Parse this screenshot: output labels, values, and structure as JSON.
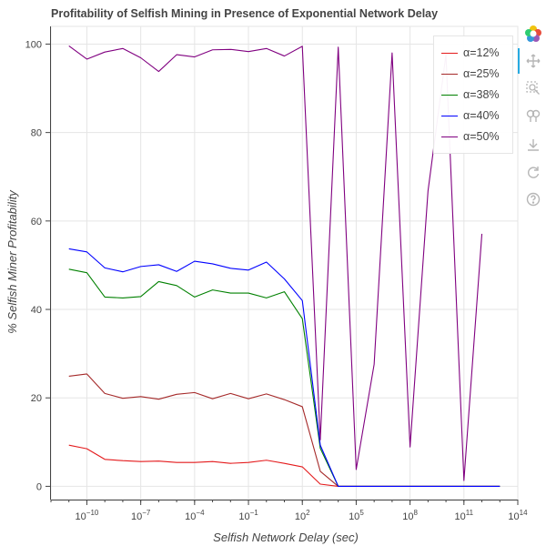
{
  "chart_data": {
    "type": "line",
    "title": "Profitability of Selfish Mining in Presence of Exponential Network Delay",
    "xlabel": "Selfish Network Delay (sec)",
    "ylabel": "% Selfish Miner Profitability",
    "x_scale": "log",
    "xlim": [
      1e-12,
      100000000000000.0
    ],
    "ylim": [
      -3,
      104
    ],
    "x_ticks": [
      {
        "value": 1e-10,
        "label": "10",
        "exp": "−10"
      },
      {
        "value": 1e-07,
        "label": "10",
        "exp": "−7"
      },
      {
        "value": 0.0001,
        "label": "10",
        "exp": "−4"
      },
      {
        "value": 0.1,
        "label": "10",
        "exp": "−1"
      },
      {
        "value": 100,
        "label": "10",
        "exp": "2"
      },
      {
        "value": 100000.0,
        "label": "10",
        "exp": "5"
      },
      {
        "value": 100000000.0,
        "label": "10",
        "exp": "8"
      },
      {
        "value": 100000000000.0,
        "label": "10",
        "exp": "11"
      },
      {
        "value": 100000000000000.0,
        "label": "10",
        "exp": "14"
      }
    ],
    "y_ticks": [
      0,
      20,
      40,
      60,
      80,
      100
    ],
    "grid": true,
    "legend_position": "top-right",
    "x": [
      1e-11,
      1e-10,
      1e-09,
      1e-08,
      1e-07,
      1e-06,
      1e-05,
      0.0001,
      0.001,
      0.01,
      0.1,
      1,
      10,
      100,
      1000,
      10000,
      100000.0,
      1000000.0,
      10000000.0,
      100000000.0,
      1000000000.0,
      10000000000.0,
      100000000000.0,
      1000000000000.0,
      10000000000000.0
    ],
    "series": [
      {
        "name": "α=12%",
        "color": "#e41a1c",
        "values": [
          9.3,
          8.5,
          6.1,
          5.8,
          5.6,
          5.7,
          5.4,
          5.4,
          5.6,
          5.2,
          5.4,
          5.9,
          5.2,
          4.4,
          0.5,
          0.0,
          0.0,
          0.0,
          0.0,
          0.0,
          0.0,
          0.0,
          0.0,
          0.0,
          0.0
        ]
      },
      {
        "name": "α=25%",
        "color": "#a52a2a",
        "values": [
          24.9,
          25.4,
          21.0,
          19.9,
          20.3,
          19.7,
          20.8,
          21.2,
          19.8,
          21.0,
          19.8,
          20.9,
          19.6,
          18.0,
          3.4,
          0.0,
          0.0,
          0.0,
          0.0,
          0.0,
          0.0,
          0.0,
          0.0,
          0.0,
          0.0
        ]
      },
      {
        "name": "α=38%",
        "color": "#008000",
        "values": [
          49.1,
          48.3,
          42.8,
          42.6,
          42.9,
          46.3,
          45.4,
          42.8,
          44.4,
          43.7,
          43.7,
          42.6,
          44.0,
          37.9,
          8.6,
          0.0,
          0.0,
          0.0,
          0.0,
          0.0,
          0.0,
          0.0,
          0.0,
          0.0,
          0.0
        ]
      },
      {
        "name": "α=40%",
        "color": "#0000ff",
        "values": [
          53.7,
          53.0,
          49.4,
          48.5,
          49.7,
          50.1,
          48.6,
          50.9,
          50.3,
          49.3,
          48.9,
          50.7,
          46.9,
          42.0,
          9.3,
          0.0,
          0.0,
          0.0,
          0.0,
          0.0,
          0.0,
          0.0,
          0.0,
          0.0,
          0.0
        ]
      },
      {
        "name": "α=50%",
        "color": "#800080",
        "values": [
          99.6,
          96.6,
          98.2,
          99.0,
          96.9,
          93.8,
          97.6,
          97.1,
          98.7,
          98.8,
          98.3,
          99.0,
          97.3,
          99.5,
          10.5,
          99.3,
          3.8,
          27.6,
          98.0,
          8.9,
          66.8,
          97.6,
          1.3,
          57.1,
          null
        ]
      }
    ]
  },
  "toolbar": {
    "logo": "bokeh-logo-icon",
    "tools": [
      "pan-icon",
      "box-zoom-icon",
      "wheel-zoom-icon",
      "save-icon",
      "reset-icon",
      "help-icon"
    ],
    "active_accent": "#26aae1"
  }
}
